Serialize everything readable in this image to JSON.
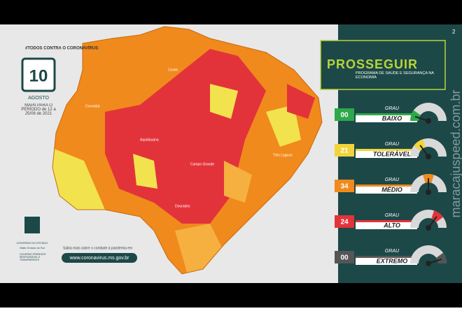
{
  "header": {
    "campaign": "#TODOS CONTRA O CORONAVÍRUS",
    "day": "10",
    "month": "AGOSTO",
    "period": "MAPA PARA O PERÍODO de 12 a 25/08 de 2021",
    "page": "2"
  },
  "program": {
    "title": "PROSSEGUIR",
    "subtitle": "PROGRAMA DE SAÚDE E SEGURANÇA NA ECONOMIA"
  },
  "levels": [
    {
      "count": {
        "value": 0,
        "label": "00"
      },
      "grau": "GRAU",
      "label": "BAIXO",
      "color": "#2ea84a"
    },
    {
      "count": {
        "value": 21,
        "label": "21"
      },
      "grau": "GRAU",
      "label": "TOLERÁVEL",
      "color": "#f2d43a"
    },
    {
      "count": {
        "value": 34,
        "label": "34"
      },
      "grau": "GRAU",
      "label": "MÉDIO",
      "color": "#f08a1c"
    },
    {
      "count": {
        "value": 24,
        "label": "24"
      },
      "grau": "GRAU",
      "label": "ALTO",
      "color": "#e3333a"
    },
    {
      "count": {
        "value": 0,
        "label": "00"
      },
      "grau": "GRAU",
      "label": "EXTREMO",
      "color": "#555555"
    }
  ],
  "map": {
    "cities": [
      "Corumbá",
      "Campo Grande",
      "Três Lagoas",
      "Dourados",
      "Aquidauana",
      "Coxim"
    ]
  },
  "footer": {
    "info": "Saiba mais sobre o combate à pandemia em",
    "url": "www.coronavirus.ms.gov.br",
    "gov": "GOVERNO DO ESTADO",
    "state": "Mato Grosso do Sul",
    "slogan": "GOVERNO PRESENTE RESPONSÁVEL E TRANSPARENTE"
  },
  "watermark": "maracajuspeed.com.br"
}
